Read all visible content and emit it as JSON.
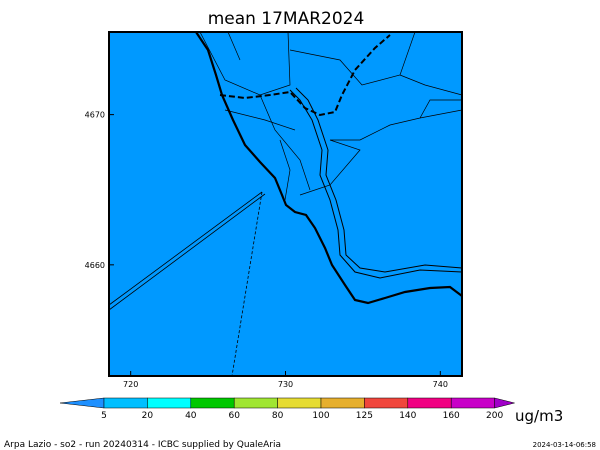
{
  "chart_data": {
    "type": "map",
    "title": "mean 17MAR2024",
    "xlim": [
      718.6,
      741.4
    ],
    "xticks": [
      720,
      730,
      740
    ],
    "ylim": [
      4652.6,
      4675.5
    ],
    "yticks": [
      4660,
      4670
    ],
    "fill_color": "#0099ff",
    "colorbar": {
      "levels": [
        5,
        20,
        40,
        60,
        80,
        100,
        125,
        140,
        160,
        200
      ],
      "colors": [
        "#1e90ff",
        "#00bfff",
        "#00ffff",
        "#00c800",
        "#a0e632",
        "#e6dc32",
        "#e6af2d",
        "#f0463c",
        "#f00082",
        "#c800c8",
        "#a000c8"
      ],
      "unit": "ug/m3"
    },
    "footer_left": "Arpa Lazio - so2 - run 20240314 - ICBC supplied by QualeAria",
    "footer_right": "2024-03-14-06:58"
  }
}
